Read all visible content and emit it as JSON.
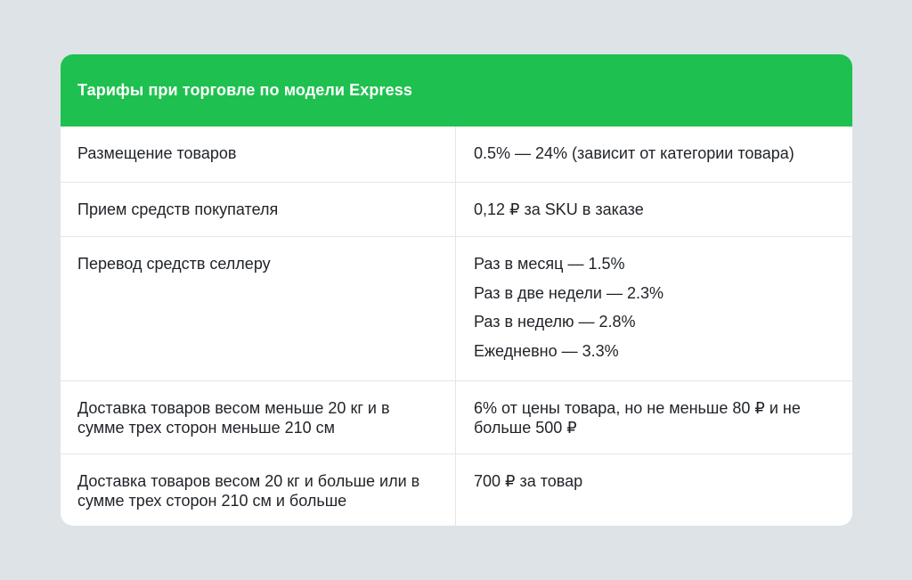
{
  "title": "Тарифы при торговле по модели Express",
  "rows": [
    {
      "label": "Размещение товаров",
      "value": "0.5% — 24% (зависит от категории товара)"
    },
    {
      "label": "Прием средств покупателя",
      "value": "0,12 ₽ за SKU в заказе"
    },
    {
      "label": "Перевод средств селлеру",
      "options": [
        "Раз в месяц — 1.5%",
        "Раз в две недели — 2.3%",
        "Раз в неделю — 2.8%",
        "Ежедневно — 3.3%"
      ]
    },
    {
      "label": "Доставка товаров весом меньше 20 кг и в сумме трех сторон меньше 210 см",
      "value": "6% от цены товара, но не меньше 80 ₽ и не больше 500 ₽"
    },
    {
      "label": "Доставка товаров весом 20 кг и больше или в сумме трех сторон 210 см и больше",
      "value": "700 ₽ за товар"
    }
  ],
  "colors": {
    "background": "#DDE3E7",
    "header": "#1EC14F",
    "card": "#FFFFFF",
    "text": "#1F2328",
    "divider": "#E3E6EA"
  }
}
